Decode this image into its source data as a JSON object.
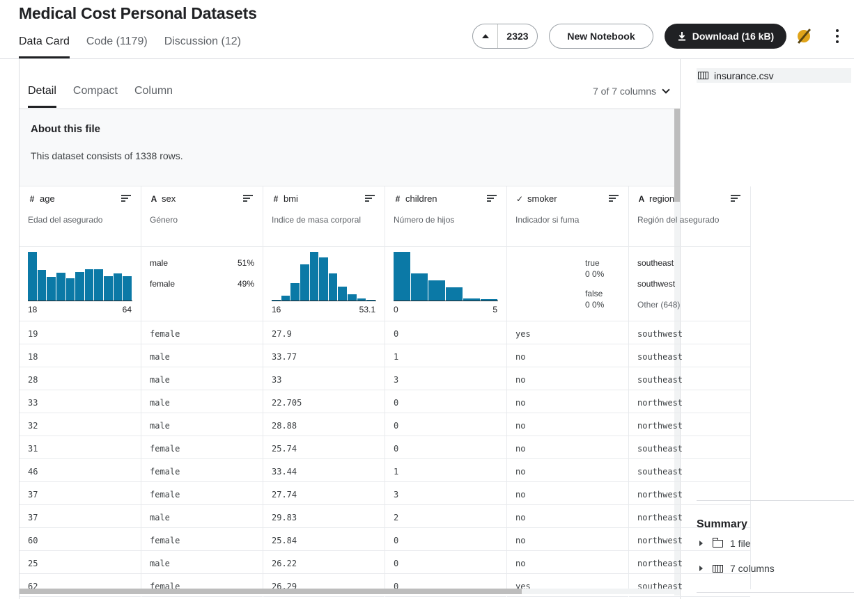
{
  "page": {
    "title": "Medical Cost Personal Datasets"
  },
  "top_tabs": [
    {
      "label": "Data Card"
    },
    {
      "label": "Code (1179)"
    },
    {
      "label": "Discussion (12)"
    }
  ],
  "actions": {
    "upvotes": "2323",
    "new_notebook": "New Notebook",
    "download": "Download (16 kB)",
    "medal_color": "#e0a41a"
  },
  "view_tabs": [
    {
      "label": "Detail"
    },
    {
      "label": "Compact"
    },
    {
      "label": "Column"
    }
  ],
  "column_selector": "7 of 7 columns",
  "about": {
    "title": "About this file",
    "text": "This dataset consists of 1338 rows."
  },
  "columns": [
    {
      "name": "age",
      "type_icon": "#",
      "desc": "Edad del asegurado",
      "range": [
        "18",
        "64"
      ],
      "hist": [
        1.0,
        0.63,
        0.48,
        0.57,
        0.46,
        0.59,
        0.64,
        0.64,
        0.5,
        0.56,
        0.5
      ]
    },
    {
      "name": "sex",
      "type_icon": "A",
      "desc": "Género",
      "cats": [
        {
          "label": "male",
          "pct": "51%"
        },
        {
          "label": "female",
          "pct": "49%"
        }
      ]
    },
    {
      "name": "bmi",
      "type_icon": "#",
      "desc": "Indice de masa corporal",
      "range": [
        "16",
        "53.1"
      ],
      "hist": [
        0.02,
        0.1,
        0.36,
        0.74,
        1.0,
        0.89,
        0.56,
        0.29,
        0.13,
        0.04,
        0.02
      ]
    },
    {
      "name": "children",
      "type_icon": "#",
      "desc": "Número de hijos",
      "range": [
        "0",
        "5"
      ],
      "hist": [
        1.0,
        0.56,
        0.41,
        0.27,
        0.04,
        0.03
      ]
    },
    {
      "name": "smoker",
      "type_icon": "✓",
      "desc": "Indicador si fuma",
      "bool": {
        "true_label": "true",
        "true_val": "0  0%",
        "false_label": "false",
        "false_val": "0  0%"
      }
    },
    {
      "name": "region",
      "type_icon": "A",
      "desc": "Región del asegurado",
      "cats_text": [
        "southeast",
        "southwest",
        "Other (648)"
      ]
    }
  ],
  "rows": [
    [
      "19",
      "female",
      "27.9",
      "0",
      "yes",
      "southwest"
    ],
    [
      "18",
      "male",
      "33.77",
      "1",
      "no",
      "southeast"
    ],
    [
      "28",
      "male",
      "33",
      "3",
      "no",
      "southeast"
    ],
    [
      "33",
      "male",
      "22.705",
      "0",
      "no",
      "northwest"
    ],
    [
      "32",
      "male",
      "28.88",
      "0",
      "no",
      "northwest"
    ],
    [
      "31",
      "female",
      "25.74",
      "0",
      "no",
      "southeast"
    ],
    [
      "46",
      "female",
      "33.44",
      "1",
      "no",
      "southeast"
    ],
    [
      "37",
      "female",
      "27.74",
      "3",
      "no",
      "northwest"
    ],
    [
      "37",
      "male",
      "29.83",
      "2",
      "no",
      "northeast"
    ],
    [
      "60",
      "female",
      "25.84",
      "0",
      "no",
      "northwest"
    ],
    [
      "25",
      "male",
      "26.22",
      "0",
      "no",
      "northeast"
    ],
    [
      "62",
      "female",
      "26.29",
      "0",
      "yes",
      "southeast"
    ]
  ],
  "sidebar": {
    "file": "insurance.csv",
    "summary_title": "Summary",
    "summary_items": [
      {
        "label": "1 file"
      },
      {
        "label": "7 columns"
      }
    ]
  },
  "colors": {
    "bar": "#0b79a6"
  }
}
